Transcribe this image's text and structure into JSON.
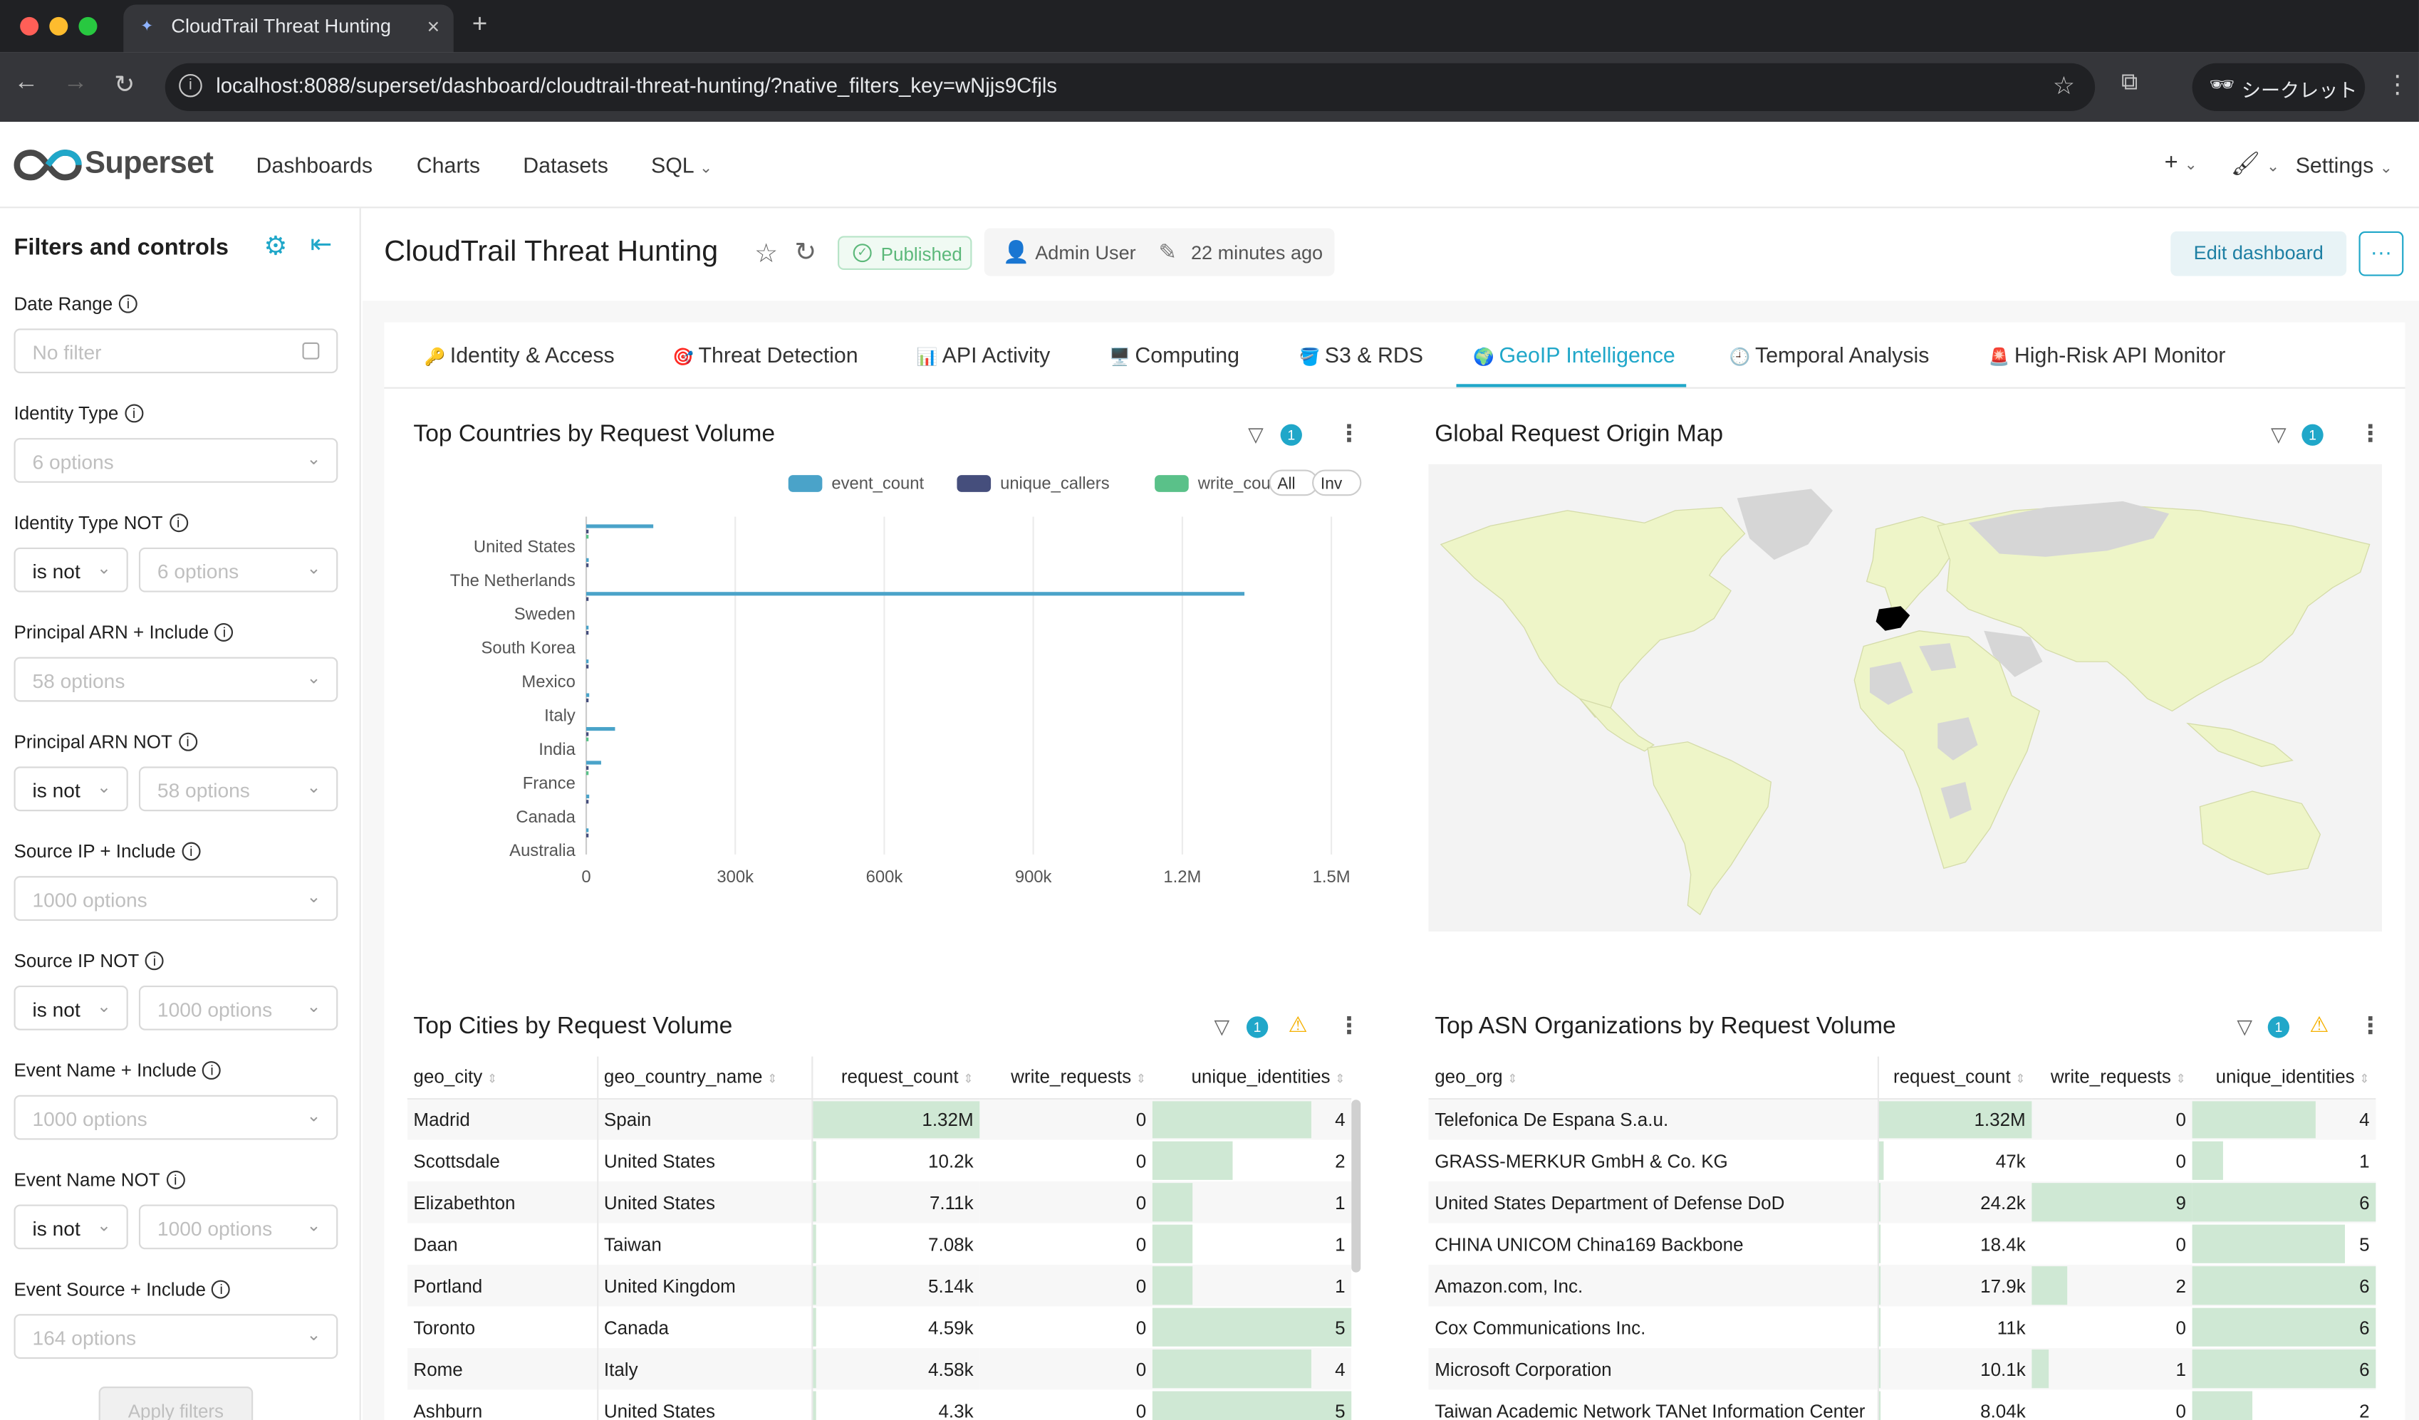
{
  "browser": {
    "tab_title": "CloudTrail Threat Hunting",
    "url": "localhost:8088/superset/dashboard/cloudtrail-threat-hunting/?native_filters_key=wNjjs9Cfjls",
    "incognito_label": "シークレット"
  },
  "app": {
    "logo_text": "Superset",
    "menu": {
      "dashboards": "Dashboards",
      "charts": "Charts",
      "datasets": "Datasets",
      "sql": "SQL"
    },
    "settings": "Settings"
  },
  "sidebar": {
    "title": "Filters and controls",
    "filters": [
      {
        "label": "Date Range",
        "placeholder": "No filter"
      },
      {
        "label": "Identity Type",
        "placeholder": "6 options"
      },
      {
        "label": "Identity Type NOT",
        "operator": "is not",
        "placeholder": "6 options"
      },
      {
        "label": "Principal ARN + Include",
        "placeholder": "58 options"
      },
      {
        "label": "Principal ARN NOT",
        "operator": "is not",
        "placeholder": "58 options"
      },
      {
        "label": "Source IP + Include",
        "placeholder": "1000 options"
      },
      {
        "label": "Source IP NOT",
        "operator": "is not",
        "placeholder": "1000 options"
      },
      {
        "label": "Event Name + Include",
        "placeholder": "1000 options"
      },
      {
        "label": "Event Name NOT",
        "operator": "is not",
        "placeholder": "1000 options"
      },
      {
        "label": "Event Source + Include",
        "placeholder": "164 options"
      }
    ],
    "apply_label": "Apply filters"
  },
  "dashboard": {
    "title": "CloudTrail Threat Hunting",
    "status": "Published",
    "owner": "Admin User",
    "modified": "22 minutes ago",
    "edit_label": "Edit dashboard",
    "more_label": "···",
    "tabs": [
      {
        "icon": "🔑",
        "label": "Identity & Access"
      },
      {
        "icon": "🎯",
        "label": "Threat Detection"
      },
      {
        "icon": "📊",
        "label": "API Activity"
      },
      {
        "icon": "🖥️",
        "label": "Computing"
      },
      {
        "icon": "🪣",
        "label": "S3 & RDS"
      },
      {
        "icon": "🌍",
        "label": "GeoIP Intelligence"
      },
      {
        "icon": "🕘",
        "label": "Temporal Analysis"
      },
      {
        "icon": "🚨",
        "label": "High-Risk API Monitor"
      }
    ],
    "active_tab": "GeoIP Intelligence"
  },
  "panels": {
    "countries": {
      "title": "Top Countries by Request Volume",
      "filter_count": "1"
    },
    "map": {
      "title": "Global Request Origin Map",
      "filter_count": "1",
      "highlighted_country": "Spain"
    },
    "cities": {
      "title": "Top Cities by Request Volume",
      "filter_count": "1"
    },
    "asn": {
      "title": "Top ASN Organizations by Request Volume",
      "filter_count": "1"
    }
  },
  "chart_data": {
    "type": "bar",
    "orientation": "horizontal",
    "title": "Top Countries by Request Volume",
    "legend_position": "top-right",
    "legend_buttons": [
      "All",
      "Inv"
    ],
    "categories": [
      "United States",
      "The Netherlands",
      "Sweden",
      "South Korea",
      "Mexico",
      "Italy",
      "India",
      "France",
      "Canada",
      "Australia"
    ],
    "series": [
      {
        "name": "event_count",
        "color": "#4aa3c9",
        "values": [
          135000,
          5000,
          1325000,
          3000,
          2000,
          6000,
          58000,
          30000,
          6000,
          1500
        ]
      },
      {
        "name": "unique_callers",
        "color": "#454e7c",
        "values": [
          30,
          5,
          4,
          3,
          2,
          4,
          6,
          5,
          5,
          2
        ]
      },
      {
        "name": "write_count",
        "color": "#5ac189",
        "values": [
          20,
          0,
          0,
          0,
          0,
          0,
          2,
          1,
          0,
          0
        ]
      }
    ],
    "xlim": [
      0,
      1500000
    ],
    "xticks": [
      "0",
      "300k",
      "600k",
      "900k",
      "1.2M",
      "1.5M"
    ],
    "grid": true
  },
  "cities_table": {
    "columns": [
      "geo_city",
      "geo_country_name",
      "request_count",
      "write_requests",
      "unique_identities"
    ],
    "rows": [
      {
        "city": "Madrid",
        "country": "Spain",
        "requests": "1.32M",
        "req_frac": 1.0,
        "writes": "0",
        "wr_frac": 0,
        "ids": "4",
        "id_frac": 0.8
      },
      {
        "city": "Scottsdale",
        "country": "United States",
        "requests": "10.2k",
        "req_frac": 0.008,
        "writes": "0",
        "wr_frac": 0,
        "ids": "2",
        "id_frac": 0.4
      },
      {
        "city": "Elizabethton",
        "country": "United States",
        "requests": "7.11k",
        "req_frac": 0.005,
        "writes": "0",
        "wr_frac": 0,
        "ids": "1",
        "id_frac": 0.2
      },
      {
        "city": "Daan",
        "country": "Taiwan",
        "requests": "7.08k",
        "req_frac": 0.005,
        "writes": "0",
        "wr_frac": 0,
        "ids": "1",
        "id_frac": 0.2
      },
      {
        "city": "Portland",
        "country": "United Kingdom",
        "requests": "5.14k",
        "req_frac": 0.004,
        "writes": "0",
        "wr_frac": 0,
        "ids": "1",
        "id_frac": 0.2
      },
      {
        "city": "Toronto",
        "country": "Canada",
        "requests": "4.59k",
        "req_frac": 0.003,
        "writes": "0",
        "wr_frac": 0,
        "ids": "5",
        "id_frac": 1.0
      },
      {
        "city": "Rome",
        "country": "Italy",
        "requests": "4.58k",
        "req_frac": 0.003,
        "writes": "0",
        "wr_frac": 0,
        "ids": "4",
        "id_frac": 0.8
      },
      {
        "city": "Ashburn",
        "country": "United States",
        "requests": "4.3k",
        "req_frac": 0.003,
        "writes": "0",
        "wr_frac": 0,
        "ids": "5",
        "id_frac": 1.0
      }
    ]
  },
  "asn_table": {
    "columns": [
      "geo_org",
      "request_count",
      "write_requests",
      "unique_identities"
    ],
    "rows": [
      {
        "org": "Telefonica De Espana S.a.u.",
        "requests": "1.32M",
        "req_frac": 1.0,
        "writes": "0",
        "wr_frac": 0,
        "ids": "4",
        "id_frac": 0.67
      },
      {
        "org": "GRASS-MERKUR GmbH & Co. KG",
        "requests": "47k",
        "req_frac": 0.036,
        "writes": "0",
        "wr_frac": 0,
        "ids": "1",
        "id_frac": 0.17
      },
      {
        "org": "United States Department of Defense DoD",
        "requests": "24.2k",
        "req_frac": 0.018,
        "writes": "9",
        "wr_frac": 1.0,
        "ids": "6",
        "id_frac": 1.0
      },
      {
        "org": "CHINA UNICOM China169 Backbone",
        "requests": "18.4k",
        "req_frac": 0.014,
        "writes": "0",
        "wr_frac": 0,
        "ids": "5",
        "id_frac": 0.83
      },
      {
        "org": "Amazon.com, Inc.",
        "requests": "17.9k",
        "req_frac": 0.013,
        "writes": "2",
        "wr_frac": 0.22,
        "ids": "6",
        "id_frac": 1.0
      },
      {
        "org": "Cox Communications Inc.",
        "requests": "11k",
        "req_frac": 0.008,
        "writes": "0",
        "wr_frac": 0,
        "ids": "6",
        "id_frac": 1.0
      },
      {
        "org": "Microsoft Corporation",
        "requests": "10.1k",
        "req_frac": 0.008,
        "writes": "1",
        "wr_frac": 0.11,
        "ids": "6",
        "id_frac": 1.0
      },
      {
        "org": "Taiwan Academic Network TANet Information Center",
        "requests": "8.04k",
        "req_frac": 0.006,
        "writes": "0",
        "wr_frac": 0,
        "ids": "2",
        "id_frac": 0.33
      }
    ]
  },
  "colors": {
    "accent": "#20a7c9",
    "bar_fill": "#cfe8d4",
    "map_land": "#eef5c8",
    "map_nodata": "#d6d6d6",
    "map_highlight": "#000000"
  }
}
